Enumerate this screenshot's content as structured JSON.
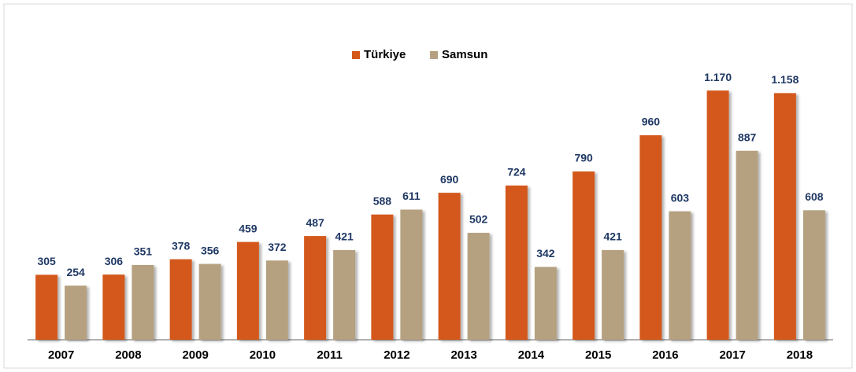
{
  "chart_data": {
    "type": "bar",
    "categories": [
      "2007",
      "2008",
      "2009",
      "2010",
      "2011",
      "2012",
      "2013",
      "2014",
      "2015",
      "2016",
      "2017",
      "2018"
    ],
    "series": [
      {
        "name": "Türkiye",
        "color": "#d4581a",
        "values": [
          305,
          306,
          378,
          459,
          487,
          588,
          690,
          724,
          790,
          960,
          1170,
          1158
        ],
        "value_labels": [
          "305",
          "306",
          "378",
          "459",
          "487",
          "588",
          "690",
          "724",
          "790",
          "960",
          "1.170",
          "1.158"
        ]
      },
      {
        "name": "Samsun",
        "color": "#b5a180",
        "values": [
          254,
          351,
          356,
          372,
          421,
          611,
          502,
          342,
          421,
          603,
          887,
          608
        ]
      }
    ],
    "ylim": [
      0,
      1200
    ],
    "legend": "top"
  }
}
